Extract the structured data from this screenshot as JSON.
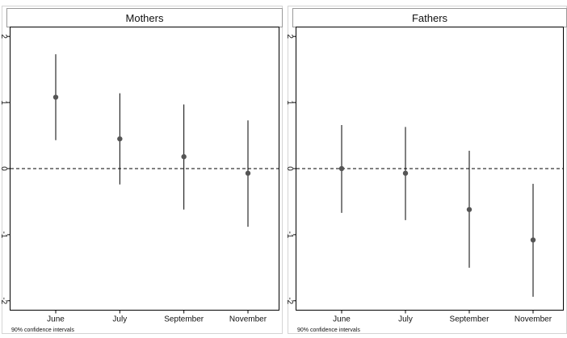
{
  "chart_data": [
    {
      "type": "scatter",
      "title": "Mothers",
      "categories": [
        "June",
        "July",
        "September",
        "November"
      ],
      "series": [
        {
          "estimates": [
            1.08,
            0.45,
            0.18,
            -0.07
          ],
          "ci_lower": [
            0.43,
            -0.24,
            -0.62,
            -0.88
          ],
          "ci_upper": [
            1.73,
            1.14,
            0.97,
            0.73
          ]
        }
      ],
      "ylim": [
        -2.1,
        2.1
      ],
      "yticks": [
        2,
        1,
        0,
        -1,
        -2
      ],
      "reference_line": 0,
      "note": "90% confidence intervals",
      "grid": false,
      "marker_color": "#555555"
    },
    {
      "type": "scatter",
      "title": "Fathers",
      "categories": [
        "June",
        "July",
        "September",
        "November"
      ],
      "series": [
        {
          "estimates": [
            0.0,
            -0.07,
            -0.62,
            -1.08
          ],
          "ci_lower": [
            -0.67,
            -0.78,
            -1.5,
            -1.94
          ],
          "ci_upper": [
            0.66,
            0.63,
            0.27,
            -0.23
          ]
        }
      ],
      "ylim": [
        -2.1,
        2.1
      ],
      "yticks": [
        2,
        1,
        0,
        -1,
        -2
      ],
      "reference_line": 0,
      "note": "90% confidence intervals",
      "grid": false,
      "marker_color": "#555555"
    }
  ]
}
